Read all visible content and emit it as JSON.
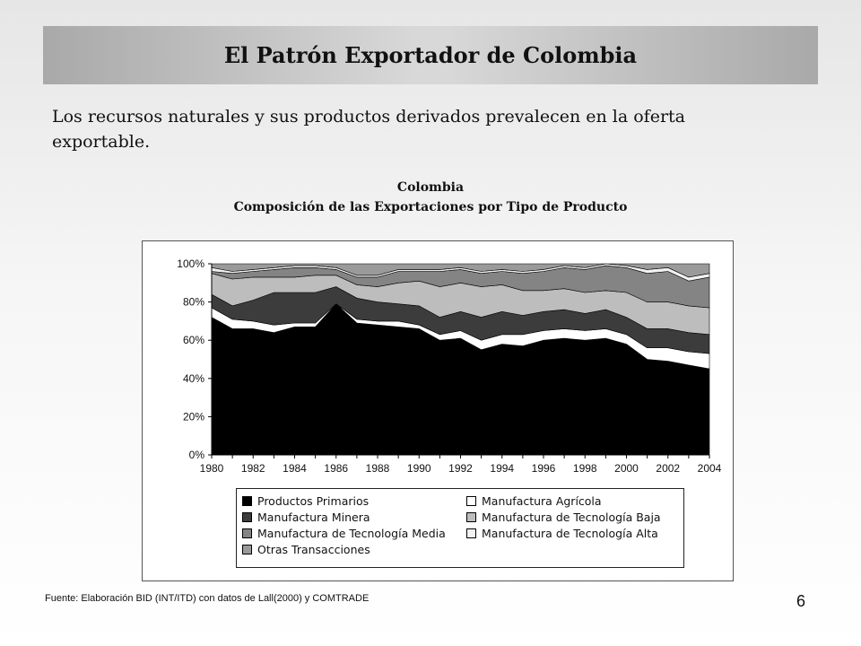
{
  "slide": {
    "title": "El Patrón Exportador de Colombia",
    "subtitle": "Los recursos naturales y sus productos derivados prevalecen en la oferta exportable.",
    "source": "Fuente: Elaboración BID (INT/ITD)  con datos de Lall(2000) y COMTRADE",
    "page_number": "6"
  },
  "chart_data": {
    "type": "area",
    "stacked": true,
    "title": "Colombia",
    "subtitle": "Composición de las Exportaciones por Tipo de Producto",
    "x": [
      1980,
      1981,
      1982,
      1983,
      1984,
      1985,
      1986,
      1987,
      1988,
      1989,
      1990,
      1991,
      1992,
      1993,
      1994,
      1995,
      1996,
      1997,
      1998,
      1999,
      2000,
      2001,
      2002,
      2003,
      2004
    ],
    "x_tick_labels": [
      "1980",
      "1982",
      "1984",
      "1986",
      "1988",
      "1990",
      "1992",
      "1994",
      "1996",
      "1998",
      "2000",
      "2002",
      "2004"
    ],
    "y_tick_labels": [
      "0%",
      "20%",
      "40%",
      "60%",
      "80%",
      "100%"
    ],
    "ylim": [
      0,
      100
    ],
    "grid": false,
    "legend_position": "bottom",
    "series": [
      {
        "name": "Productos Primarios",
        "color": "#000000",
        "values": [
          72,
          66,
          66,
          64,
          67,
          67,
          79,
          69,
          68,
          67,
          66,
          60,
          61,
          55,
          58,
          57,
          60,
          61,
          60,
          61,
          58,
          50,
          49,
          47,
          45
        ]
      },
      {
        "name": "Manufactura Agrícola",
        "color": "#ffffff",
        "values": [
          5,
          5,
          4,
          4,
          2,
          2,
          0,
          2,
          2,
          3,
          2,
          3,
          4,
          5,
          5,
          6,
          5,
          5,
          5,
          5,
          5,
          6,
          7,
          7,
          8
        ]
      },
      {
        "name": "Manufactura Minera",
        "color": "#3c3c3c",
        "values": [
          7,
          7,
          11,
          17,
          16,
          16,
          9,
          11,
          10,
          9,
          10,
          9,
          10,
          12,
          12,
          10,
          10,
          10,
          9,
          10,
          9,
          10,
          10,
          10,
          10
        ]
      },
      {
        "name": "Manufactura de Tecnología Baja",
        "color": "#bdbdbd",
        "values": [
          11,
          14,
          12,
          8,
          8,
          9,
          6,
          7,
          8,
          11,
          13,
          16,
          15,
          16,
          14,
          13,
          11,
          11,
          11,
          10,
          13,
          14,
          14,
          14,
          14
        ]
      },
      {
        "name": "Manufactura de Tecnología Media",
        "color": "#848484",
        "values": [
          1,
          3,
          3,
          4,
          5,
          4,
          3,
          4,
          5,
          6,
          5,
          8,
          7,
          7,
          7,
          9,
          10,
          11,
          12,
          13,
          13,
          15,
          16,
          13,
          16
        ]
      },
      {
        "name": "Manufactura de Tecnología Alta",
        "color": "#f2f2f2",
        "values": [
          2,
          1,
          1,
          1,
          1,
          1,
          1,
          1,
          1,
          1,
          1,
          1,
          1,
          1,
          1,
          1,
          1,
          1,
          1,
          1,
          1,
          2,
          2,
          2,
          2
        ]
      },
      {
        "name": "Otras Transacciones",
        "color": "#9a9a9a",
        "values": [
          2,
          4,
          3,
          2,
          1,
          1,
          2,
          6,
          6,
          3,
          3,
          3,
          2,
          4,
          3,
          4,
          3,
          1,
          2,
          0,
          1,
          3,
          2,
          7,
          5
        ]
      }
    ]
  }
}
